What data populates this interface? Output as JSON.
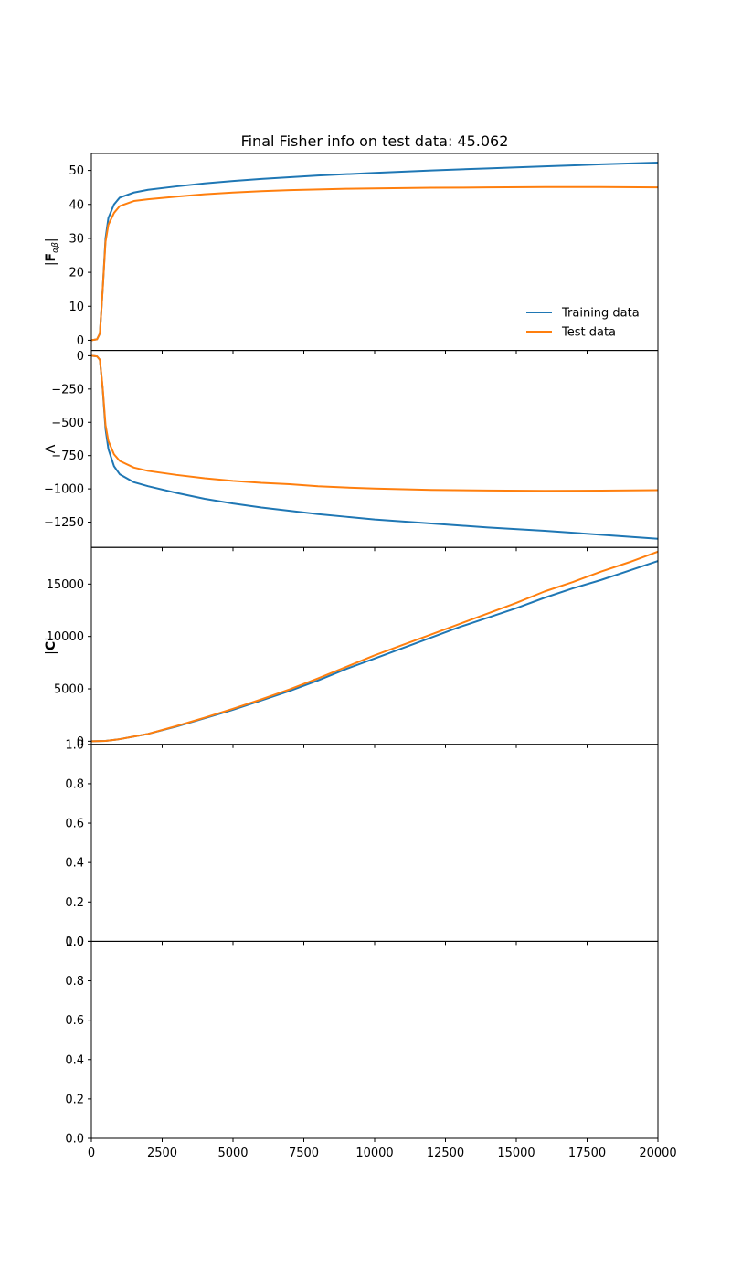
{
  "chart_data": {
    "title": "Final Fisher info on test data: 45.062",
    "shared_x": {
      "range": [
        0,
        20000
      ],
      "ticks": [
        0,
        2500,
        5000,
        7500,
        10000,
        12500,
        15000,
        17500,
        20000
      ],
      "tick_labels": [
        "0",
        "2500",
        "5000",
        "7500",
        "10000",
        "12500",
        "15000",
        "17500",
        "20000"
      ]
    },
    "legend": {
      "location": "lower-right",
      "entries": [
        {
          "label": "Training data",
          "color": "#1f77b4"
        },
        {
          "label": "Test data",
          "color": "#ff7f0e"
        }
      ]
    },
    "panels": [
      {
        "id": "fisher",
        "type": "line",
        "ylabel": "|F_{αβ}|",
        "ylim": [
          -3,
          55
        ],
        "yticks": [
          0,
          10,
          20,
          30,
          40,
          50
        ],
        "ytick_labels": [
          "0",
          "10",
          "20",
          "30",
          "40",
          "50"
        ],
        "series": [
          {
            "name": "Training data",
            "color": "#1f77b4",
            "x": [
              0,
              200,
              300,
              400,
              500,
              600,
              800,
              1000,
              1500,
              2000,
              3000,
              4000,
              5000,
              6000,
              7000,
              8000,
              9000,
              10000,
              12000,
              14000,
              16000,
              18000,
              20000
            ],
            "y": [
              0,
              0.3,
              2,
              15,
              30,
              36,
              40,
              42,
              43.5,
              44.3,
              45.3,
              46.2,
              46.9,
              47.5,
              48,
              48.5,
              48.9,
              49.3,
              50,
              50.6,
              51.2,
              51.8,
              52.3
            ]
          },
          {
            "name": "Test data",
            "color": "#ff7f0e",
            "x": [
              0,
              200,
              300,
              400,
              500,
              600,
              800,
              1000,
              1500,
              2000,
              3000,
              4000,
              5000,
              6000,
              7000,
              8000,
              9000,
              10000,
              12000,
              14000,
              16000,
              18000,
              20000
            ],
            "y": [
              0,
              0.3,
              2,
              15,
              29,
              34,
              37.5,
              39.5,
              41,
              41.5,
              42.3,
              43,
              43.5,
              43.9,
              44.2,
              44.4,
              44.6,
              44.7,
              44.9,
              45,
              45.1,
              45.1,
              45
            ]
          }
        ]
      },
      {
        "id": "lambda",
        "type": "line",
        "ylabel": "Λ",
        "ylim": [
          -1440,
          40
        ],
        "yticks": [
          0,
          -250,
          -500,
          -750,
          -1000,
          -1250
        ],
        "ytick_labels": [
          "0",
          "−250",
          "−500",
          "−750",
          "−1000",
          "−1250"
        ],
        "series": [
          {
            "name": "Training data",
            "color": "#1f77b4",
            "x": [
              0,
              200,
              300,
              400,
              500,
              600,
              800,
              1000,
              1500,
              2000,
              3000,
              4000,
              5000,
              6000,
              7000,
              8000,
              9000,
              10000,
              12000,
              14000,
              16000,
              18000,
              20000
            ],
            "y": [
              0,
              -5,
              -30,
              -250,
              -550,
              -700,
              -830,
              -890,
              -950,
              -980,
              -1030,
              -1075,
              -1110,
              -1140,
              -1165,
              -1190,
              -1210,
              -1230,
              -1260,
              -1290,
              -1315,
              -1345,
              -1375
            ]
          },
          {
            "name": "Test data",
            "color": "#ff7f0e",
            "x": [
              0,
              200,
              300,
              400,
              500,
              600,
              800,
              1000,
              1500,
              2000,
              3000,
              4000,
              5000,
              6000,
              7000,
              8000,
              9000,
              10000,
              12000,
              14000,
              16000,
              18000,
              20000
            ],
            "y": [
              0,
              -5,
              -30,
              -240,
              -520,
              -640,
              -740,
              -790,
              -840,
              -865,
              -895,
              -920,
              -940,
              -955,
              -965,
              -980,
              -990,
              -998,
              -1008,
              -1012,
              -1015,
              -1013,
              -1010
            ]
          }
        ]
      },
      {
        "id": "covariance",
        "type": "line",
        "ylabel": "|C|",
        "ylim": [
          -300,
          18500
        ],
        "yticks": [
          0,
          5000,
          10000,
          15000
        ],
        "ytick_labels": [
          "0",
          "5000",
          "10000",
          "15000"
        ],
        "series": [
          {
            "name": "Training data",
            "color": "#1f77b4",
            "x": [
              0,
              500,
              1000,
              2000,
              3000,
              4000,
              5000,
              6000,
              7000,
              8000,
              9000,
              10000,
              11000,
              12000,
              13000,
              14000,
              15000,
              16000,
              17000,
              18000,
              19000,
              20000
            ],
            "y": [
              0,
              30,
              200,
              700,
              1400,
              2200,
              3000,
              3900,
              4800,
              5800,
              6900,
              7900,
              8900,
              9900,
              10900,
              11800,
              12700,
              13700,
              14600,
              15400,
              16300,
              17200
            ]
          },
          {
            "name": "Test data",
            "color": "#ff7f0e",
            "x": [
              0,
              500,
              1000,
              2000,
              3000,
              4000,
              5000,
              6000,
              7000,
              8000,
              9000,
              10000,
              11000,
              12000,
              13000,
              14000,
              15000,
              16000,
              17000,
              18000,
              19000,
              20000
            ],
            "y": [
              0,
              30,
              200,
              700,
              1450,
              2250,
              3100,
              4000,
              4950,
              6000,
              7100,
              8200,
              9200,
              10200,
              11200,
              12200,
              13200,
              14300,
              15200,
              16200,
              17100,
              18100
            ]
          }
        ]
      },
      {
        "id": "empty-1",
        "type": "line",
        "ylabel": "",
        "ylim": [
          0,
          1
        ],
        "yticks": [
          0,
          0.2,
          0.4,
          0.6,
          0.8,
          1.0
        ],
        "ytick_labels": [
          "0.0",
          "0.2",
          "0.4",
          "0.6",
          "0.8",
          "1.0"
        ],
        "series": []
      },
      {
        "id": "empty-2",
        "type": "line",
        "ylabel": "",
        "ylim": [
          0,
          1
        ],
        "yticks": [
          0,
          0.2,
          0.4,
          0.6,
          0.8,
          1.0
        ],
        "ytick_labels": [
          "0.0",
          "0.2",
          "0.4",
          "0.6",
          "0.8",
          "1.0"
        ],
        "series": []
      }
    ]
  }
}
